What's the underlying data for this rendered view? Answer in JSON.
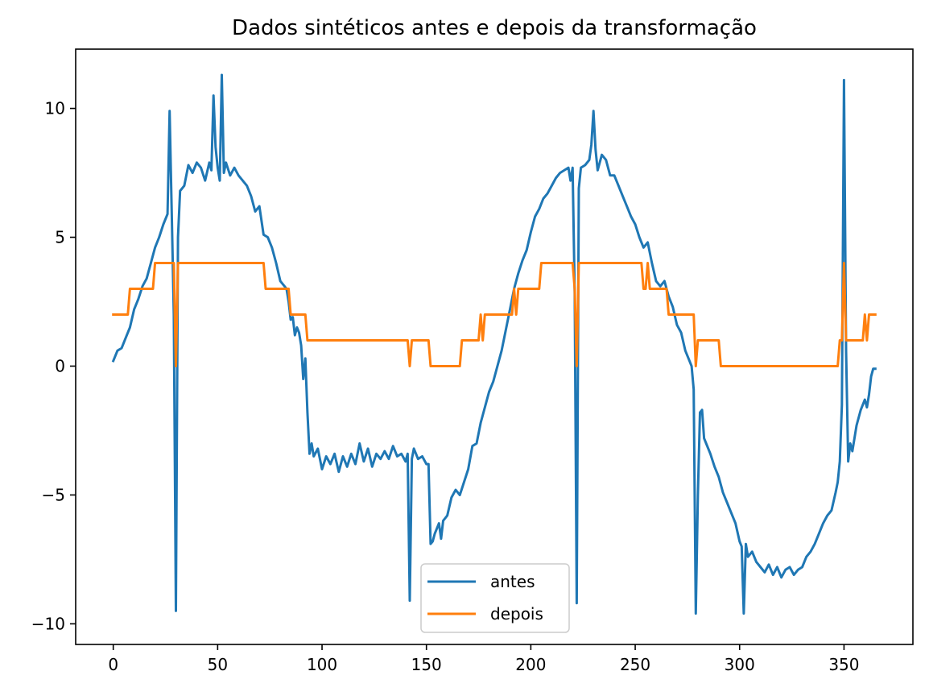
{
  "chart_data": {
    "type": "line",
    "title": "Dados sintéticos antes e depois da transformação",
    "xlabel": "",
    "ylabel": "",
    "xlim": [
      -18,
      383
    ],
    "ylim": [
      -10.8,
      12.3
    ],
    "x_ticks": [
      0,
      50,
      100,
      150,
      200,
      250,
      300,
      350
    ],
    "x_tick_labels": [
      "0",
      "50",
      "100",
      "150",
      "200",
      "250",
      "300",
      "350"
    ],
    "y_ticks": [
      -10,
      -5,
      0,
      5,
      10
    ],
    "y_tick_labels": [
      "−10",
      "−5",
      "0",
      "5",
      "10"
    ],
    "grid": false,
    "legend_placement": "lower-center",
    "series": [
      {
        "name": "antes",
        "color": "#1f77b4",
        "points": [
          [
            0,
            0.2
          ],
          [
            2,
            0.6
          ],
          [
            4,
            0.7
          ],
          [
            6,
            1.1
          ],
          [
            8,
            1.5
          ],
          [
            10,
            2.2
          ],
          [
            12,
            2.6
          ],
          [
            14,
            3.1
          ],
          [
            16,
            3.4
          ],
          [
            18,
            4.0
          ],
          [
            20,
            4.6
          ],
          [
            22,
            5.0
          ],
          [
            24,
            5.5
          ],
          [
            26,
            5.9
          ],
          [
            27,
            9.9
          ],
          [
            28,
            6.0
          ],
          [
            29,
            2.0
          ],
          [
            30,
            -9.5
          ],
          [
            31,
            5.0
          ],
          [
            32,
            6.8
          ],
          [
            34,
            7.0
          ],
          [
            36,
            7.8
          ],
          [
            38,
            7.5
          ],
          [
            40,
            7.9
          ],
          [
            42,
            7.7
          ],
          [
            44,
            7.2
          ],
          [
            46,
            7.9
          ],
          [
            47,
            7.6
          ],
          [
            48,
            10.5
          ],
          [
            49,
            8.5
          ],
          [
            50,
            7.7
          ],
          [
            51,
            7.2
          ],
          [
            52,
            11.3
          ],
          [
            53,
            7.5
          ],
          [
            54,
            7.9
          ],
          [
            56,
            7.4
          ],
          [
            58,
            7.7
          ],
          [
            60,
            7.4
          ],
          [
            62,
            7.2
          ],
          [
            64,
            7.0
          ],
          [
            66,
            6.6
          ],
          [
            68,
            6.0
          ],
          [
            70,
            6.2
          ],
          [
            72,
            5.1
          ],
          [
            74,
            5.0
          ],
          [
            76,
            4.6
          ],
          [
            78,
            4.0
          ],
          [
            80,
            3.3
          ],
          [
            82,
            3.1
          ],
          [
            83,
            3.0
          ],
          [
            84,
            2.5
          ],
          [
            85,
            1.8
          ],
          [
            86,
            1.9
          ],
          [
            87,
            1.2
          ],
          [
            88,
            1.5
          ],
          [
            89,
            1.3
          ],
          [
            90,
            0.8
          ],
          [
            91,
            -0.5
          ],
          [
            92,
            0.3
          ],
          [
            93,
            -1.8
          ],
          [
            94,
            -3.4
          ],
          [
            95,
            -3.0
          ],
          [
            96,
            -3.5
          ],
          [
            98,
            -3.2
          ],
          [
            100,
            -4.0
          ],
          [
            102,
            -3.5
          ],
          [
            104,
            -3.8
          ],
          [
            106,
            -3.4
          ],
          [
            108,
            -4.1
          ],
          [
            110,
            -3.5
          ],
          [
            112,
            -3.9
          ],
          [
            114,
            -3.4
          ],
          [
            116,
            -3.8
          ],
          [
            118,
            -3.0
          ],
          [
            120,
            -3.7
          ],
          [
            122,
            -3.2
          ],
          [
            124,
            -3.9
          ],
          [
            126,
            -3.4
          ],
          [
            128,
            -3.6
          ],
          [
            130,
            -3.3
          ],
          [
            132,
            -3.6
          ],
          [
            134,
            -3.1
          ],
          [
            136,
            -3.5
          ],
          [
            138,
            -3.4
          ],
          [
            140,
            -3.7
          ],
          [
            141,
            -3.4
          ],
          [
            142,
            -9.1
          ],
          [
            143,
            -3.6
          ],
          [
            144,
            -3.2
          ],
          [
            146,
            -3.6
          ],
          [
            148,
            -3.5
          ],
          [
            150,
            -3.8
          ],
          [
            151,
            -3.8
          ],
          [
            152,
            -6.9
          ],
          [
            153,
            -6.8
          ],
          [
            154,
            -6.5
          ],
          [
            156,
            -6.1
          ],
          [
            157,
            -6.7
          ],
          [
            158,
            -6.0
          ],
          [
            160,
            -5.8
          ],
          [
            162,
            -5.1
          ],
          [
            164,
            -4.8
          ],
          [
            166,
            -5.0
          ],
          [
            168,
            -4.5
          ],
          [
            170,
            -4.0
          ],
          [
            172,
            -3.1
          ],
          [
            174,
            -3.0
          ],
          [
            176,
            -2.2
          ],
          [
            178,
            -1.6
          ],
          [
            180,
            -1.0
          ],
          [
            182,
            -0.6
          ],
          [
            184,
            0.0
          ],
          [
            186,
            0.6
          ],
          [
            188,
            1.4
          ],
          [
            190,
            2.2
          ],
          [
            192,
            3.0
          ],
          [
            194,
            3.6
          ],
          [
            196,
            4.1
          ],
          [
            198,
            4.5
          ],
          [
            200,
            5.2
          ],
          [
            202,
            5.8
          ],
          [
            204,
            6.1
          ],
          [
            206,
            6.5
          ],
          [
            208,
            6.7
          ],
          [
            210,
            7.0
          ],
          [
            212,
            7.3
          ],
          [
            214,
            7.5
          ],
          [
            216,
            7.6
          ],
          [
            218,
            7.7
          ],
          [
            219,
            7.2
          ],
          [
            220,
            7.7
          ],
          [
            221,
            2.8
          ],
          [
            222,
            -9.2
          ],
          [
            223,
            6.9
          ],
          [
            224,
            7.7
          ],
          [
            226,
            7.8
          ],
          [
            228,
            8.0
          ],
          [
            229,
            8.6
          ],
          [
            230,
            9.9
          ],
          [
            231,
            8.4
          ],
          [
            232,
            7.6
          ],
          [
            234,
            8.2
          ],
          [
            236,
            8.0
          ],
          [
            238,
            7.4
          ],
          [
            240,
            7.4
          ],
          [
            242,
            7.0
          ],
          [
            244,
            6.6
          ],
          [
            246,
            6.2
          ],
          [
            248,
            5.8
          ],
          [
            250,
            5.5
          ],
          [
            252,
            5.0
          ],
          [
            254,
            4.6
          ],
          [
            256,
            4.8
          ],
          [
            258,
            4.0
          ],
          [
            260,
            3.3
          ],
          [
            262,
            3.1
          ],
          [
            264,
            3.3
          ],
          [
            266,
            2.7
          ],
          [
            268,
            2.3
          ],
          [
            270,
            1.6
          ],
          [
            272,
            1.3
          ],
          [
            274,
            0.6
          ],
          [
            276,
            0.2
          ],
          [
            277,
            0.0
          ],
          [
            278,
            -0.9
          ],
          [
            279,
            -9.6
          ],
          [
            280,
            -5.0
          ],
          [
            281,
            -1.8
          ],
          [
            282,
            -1.7
          ],
          [
            283,
            -2.8
          ],
          [
            284,
            -3.0
          ],
          [
            286,
            -3.4
          ],
          [
            288,
            -3.9
          ],
          [
            290,
            -4.3
          ],
          [
            292,
            -4.9
          ],
          [
            294,
            -5.3
          ],
          [
            296,
            -5.7
          ],
          [
            298,
            -6.1
          ],
          [
            300,
            -6.8
          ],
          [
            301,
            -7.0
          ],
          [
            302,
            -9.6
          ],
          [
            303,
            -6.9
          ],
          [
            304,
            -7.4
          ],
          [
            306,
            -7.2
          ],
          [
            308,
            -7.6
          ],
          [
            310,
            -7.8
          ],
          [
            312,
            -8.0
          ],
          [
            314,
            -7.7
          ],
          [
            316,
            -8.1
          ],
          [
            318,
            -7.8
          ],
          [
            320,
            -8.2
          ],
          [
            322,
            -7.9
          ],
          [
            324,
            -7.8
          ],
          [
            326,
            -8.1
          ],
          [
            328,
            -7.9
          ],
          [
            330,
            -7.8
          ],
          [
            332,
            -7.4
          ],
          [
            334,
            -7.2
          ],
          [
            336,
            -6.9
          ],
          [
            338,
            -6.5
          ],
          [
            340,
            -6.1
          ],
          [
            342,
            -5.8
          ],
          [
            344,
            -5.6
          ],
          [
            346,
            -4.9
          ],
          [
            347,
            -4.5
          ],
          [
            348,
            -3.7
          ],
          [
            349,
            -1.5
          ],
          [
            350,
            11.1
          ],
          [
            351,
            0.6
          ],
          [
            352,
            -3.7
          ],
          [
            353,
            -3.0
          ],
          [
            354,
            -3.3
          ],
          [
            356,
            -2.3
          ],
          [
            358,
            -1.7
          ],
          [
            360,
            -1.3
          ],
          [
            361,
            -1.6
          ],
          [
            362,
            -1.1
          ],
          [
            363,
            -0.4
          ],
          [
            364,
            -0.1
          ],
          [
            365,
            -0.1
          ]
        ]
      },
      {
        "name": "depois",
        "color": "#ff7f0e",
        "points": [
          [
            0,
            2
          ],
          [
            7,
            2
          ],
          [
            8,
            3
          ],
          [
            19,
            3
          ],
          [
            20,
            4
          ],
          [
            29,
            4
          ],
          [
            30,
            0
          ],
          [
            31,
            4
          ],
          [
            72,
            4
          ],
          [
            73,
            3
          ],
          [
            84,
            3
          ],
          [
            85,
            2
          ],
          [
            92,
            2
          ],
          [
            93,
            1
          ],
          [
            141,
            1
          ],
          [
            142,
            0
          ],
          [
            143,
            1
          ],
          [
            151,
            1
          ],
          [
            152,
            0
          ],
          [
            166,
            0
          ],
          [
            167,
            1
          ],
          [
            175,
            1
          ],
          [
            176,
            2
          ],
          [
            177,
            1
          ],
          [
            178,
            2
          ],
          [
            191,
            2
          ],
          [
            192,
            3
          ],
          [
            193,
            2
          ],
          [
            194,
            3
          ],
          [
            204,
            3
          ],
          [
            205,
            4
          ],
          [
            220,
            4
          ],
          [
            221,
            3
          ],
          [
            222,
            0
          ],
          [
            223,
            4
          ],
          [
            253,
            4
          ],
          [
            254,
            3
          ],
          [
            255,
            3
          ],
          [
            256,
            4
          ],
          [
            257,
            3
          ],
          [
            265,
            3
          ],
          [
            266,
            2
          ],
          [
            278,
            2
          ],
          [
            279,
            0
          ],
          [
            280,
            1
          ],
          [
            290,
            1
          ],
          [
            291,
            0
          ],
          [
            347,
            0
          ],
          [
            348,
            1
          ],
          [
            349,
            1
          ],
          [
            350,
            4
          ],
          [
            351,
            1
          ],
          [
            359,
            1
          ],
          [
            360,
            2
          ],
          [
            361,
            1
          ],
          [
            362,
            2
          ],
          [
            365,
            2
          ]
        ]
      }
    ]
  }
}
